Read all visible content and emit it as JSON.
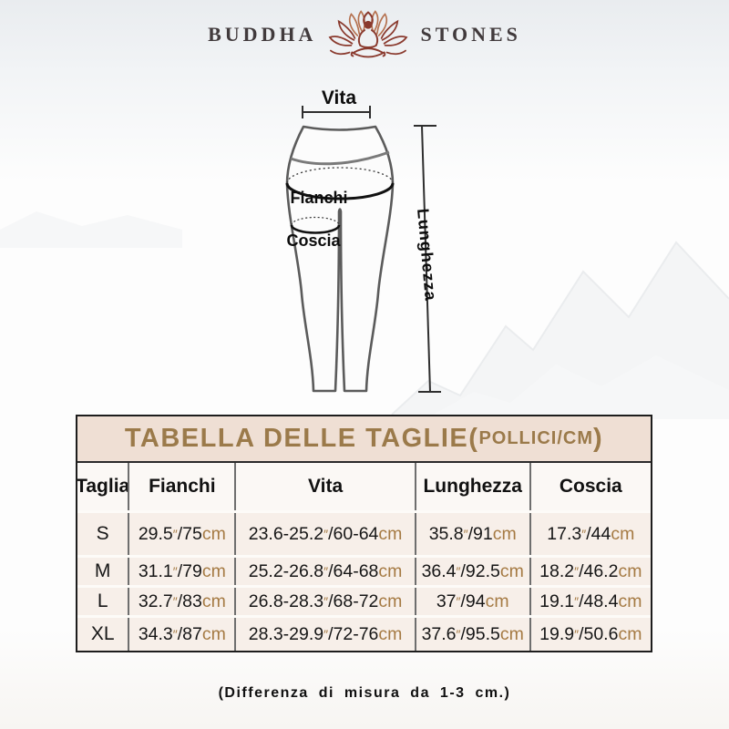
{
  "brand": {
    "left": "BUDDHA",
    "right": "STONES",
    "lotus_color_dark": "#8a3a2e",
    "lotus_color_light": "#b5714f"
  },
  "diagram": {
    "labels": {
      "vita": "Vita",
      "fianchi": "Fianchi",
      "coscia": "Coscia",
      "lunghezza": "Lunghezza"
    }
  },
  "size_table": {
    "title": {
      "main": "TABELLA DELLE TAGLIE(",
      "unit": "POLLICI/CM",
      "close": ")"
    },
    "title_color": "#9b7a4a",
    "unit_color": "#a57a43",
    "columns": [
      "Taglia",
      "Fianchi",
      "Vita",
      "Lunghezza",
      "Coscia"
    ],
    "rows": [
      {
        "size": "S",
        "fianchi": "29.5″/75cm",
        "vita": "23.6-25.2″/60-64cm",
        "lunghezza": "35.8″/91cm",
        "coscia": "17.3″/44cm"
      },
      {
        "size": "M",
        "fianchi": "31.1″/79cm",
        "vita": "25.2-26.8″/64-68cm",
        "lunghezza": "36.4″/92.5cm",
        "coscia": "18.2″/46.2cm"
      },
      {
        "size": "L",
        "fianchi": "32.7″/83cm",
        "vita": "26.8-28.3″/68-72cm",
        "lunghezza": "37″/94cm",
        "coscia": "19.1″/48.4cm"
      },
      {
        "size": "XL",
        "fianchi": "34.3″/87cm",
        "vita": "28.3-29.9″/72-76cm",
        "lunghezza": "37.6″/95.5cm",
        "coscia": "19.9″/50.6cm"
      }
    ]
  },
  "footer": {
    "note": "(Differenza di misura da 1-3 cm.)"
  }
}
